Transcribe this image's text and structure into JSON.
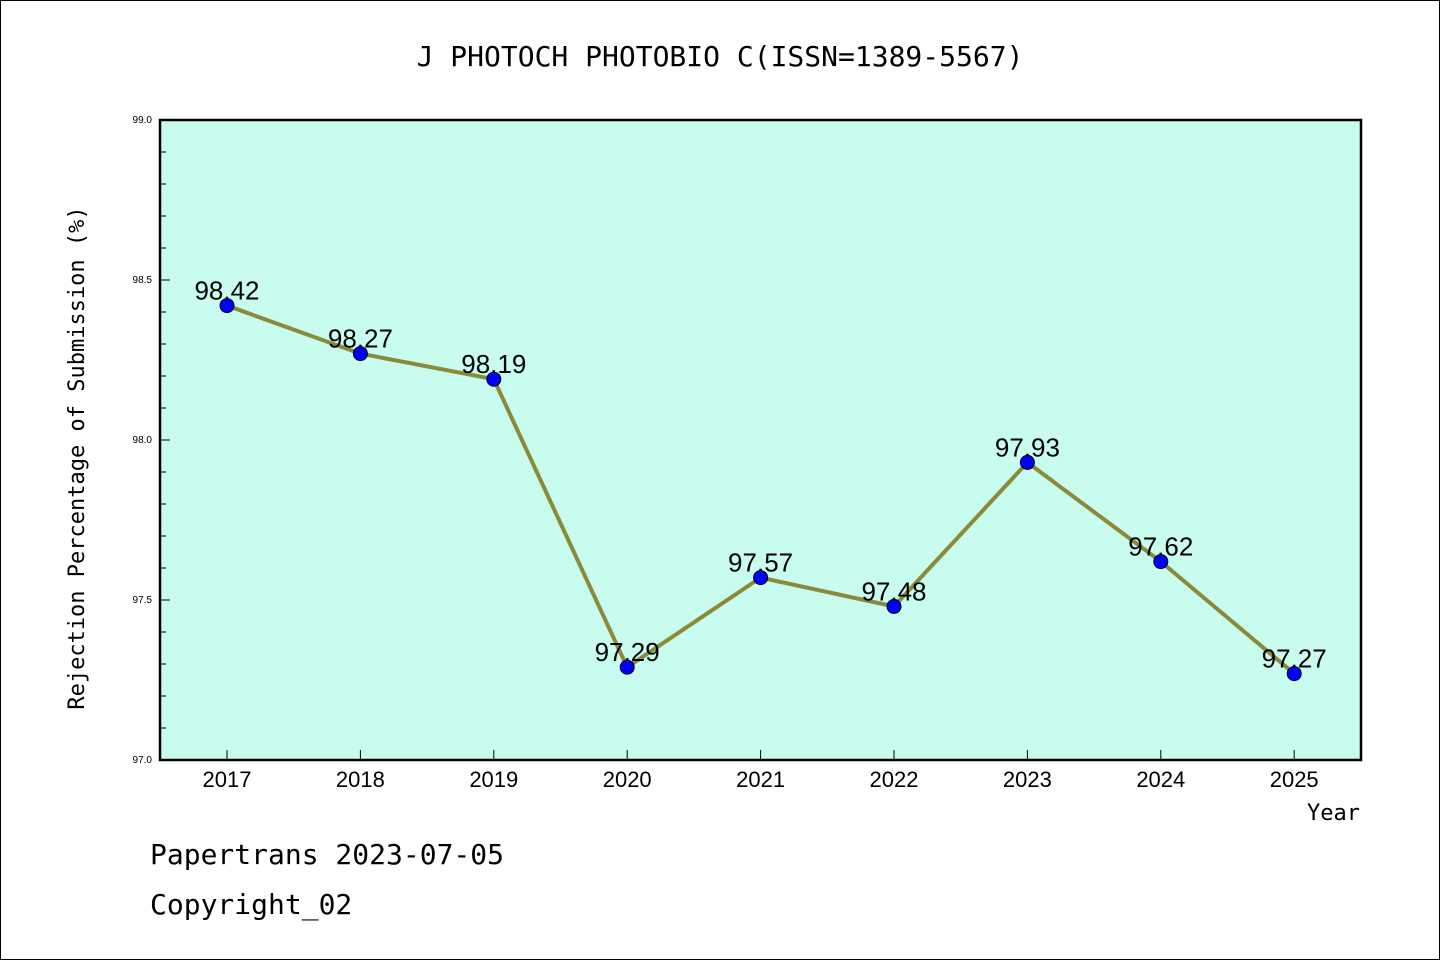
{
  "chart_data": {
    "type": "line",
    "title": "J PHOTOCH PHOTOBIO C(ISSN=1389-5567)",
    "xlabel": "Year",
    "ylabel": "Rejection Percentage of Submission (%)",
    "categories": [
      "2017",
      "2018",
      "2019",
      "2020",
      "2021",
      "2022",
      "2023",
      "2024",
      "2025"
    ],
    "values": [
      98.42,
      98.27,
      98.19,
      97.29,
      97.57,
      97.48,
      97.93,
      97.62,
      97.27
    ],
    "data_labels": [
      "98.42",
      "98.27",
      "98.19",
      "97.29",
      "97.57",
      "97.48",
      "97.93",
      "97.62",
      "97.27"
    ],
    "ylim": [
      97.0,
      99.0
    ],
    "yticks": [
      "97.0",
      "97.5",
      "98.0",
      "98.5",
      "99.0"
    ],
    "colors": {
      "plot_background": "#c8fcee",
      "line": "#8b8a3a",
      "marker": "#0000ff"
    },
    "grid": false
  },
  "footer": {
    "line1": "Papertrans 2023-07-05",
    "line2": "Copyright_02"
  }
}
